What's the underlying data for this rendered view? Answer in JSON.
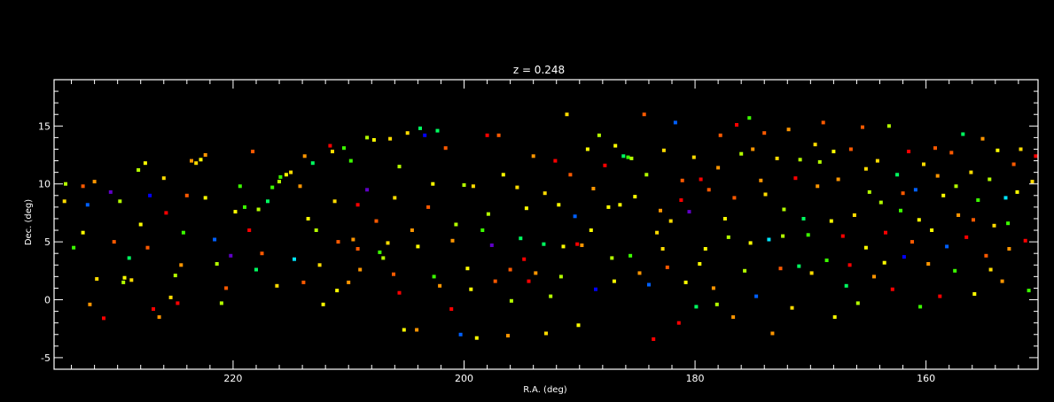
{
  "chart_data": {
    "type": "scatter",
    "title": "z = 0.248",
    "xlabel": "R.A. (deg)",
    "ylabel": "Dec. (deg)",
    "xlim": [
      235.5,
      150.3
    ],
    "ylim": [
      -6,
      19
    ],
    "x_major_ticks": [
      220,
      200,
      180,
      160
    ],
    "y_major_ticks": [
      -5,
      0,
      5,
      10,
      15
    ],
    "x_minor_step": 2,
    "y_minor_step": 1,
    "x_tick_labels": [
      "220",
      "200",
      "180",
      "160"
    ],
    "y_tick_labels": [
      "-5",
      "0",
      "5",
      "10",
      "15"
    ],
    "background": "#000000",
    "axis_color": "#ffffff",
    "grid": false,
    "legend": "none",
    "palette": [
      "#ff0000",
      "#ff5a00",
      "#ff9600",
      "#ffdc00",
      "#ffff00",
      "#b4ff00",
      "#3cff00",
      "#00ff60",
      "#00e6ff",
      "#0060ff",
      "#0000ff",
      "#6000c8"
    ],
    "points": [
      [
        234.5,
        10.0,
        5
      ],
      [
        234.6,
        8.5,
        3
      ],
      [
        233.8,
        4.5,
        6
      ],
      [
        233.0,
        9.8,
        1
      ],
      [
        233.0,
        5.8,
        4
      ],
      [
        232.6,
        8.2,
        9
      ],
      [
        232.4,
        -0.4,
        2
      ],
      [
        231.8,
        1.8,
        3
      ],
      [
        231.2,
        -1.6,
        0
      ],
      [
        230.6,
        9.3,
        11
      ],
      [
        229.8,
        8.5,
        5
      ],
      [
        229.5,
        1.5,
        5
      ],
      [
        229.4,
        1.9,
        4
      ],
      [
        228.8,
        1.7,
        3
      ],
      [
        229.0,
        3.6,
        7
      ],
      [
        228.2,
        11.2,
        5
      ],
      [
        227.6,
        11.8,
        4
      ],
      [
        227.4,
        4.5,
        1
      ],
      [
        227.2,
        9.0,
        10
      ],
      [
        226.9,
        -0.8,
        0
      ],
      [
        226.4,
        -1.5,
        2
      ],
      [
        225.8,
        7.5,
        0
      ],
      [
        225.4,
        0.2,
        3
      ],
      [
        225.0,
        2.1,
        5
      ],
      [
        224.8,
        -0.3,
        0
      ],
      [
        224.5,
        3.0,
        2
      ],
      [
        224.0,
        9.0,
        1
      ],
      [
        223.6,
        12.0,
        2
      ],
      [
        223.2,
        11.8,
        3
      ],
      [
        222.8,
        12.1,
        4
      ],
      [
        222.4,
        12.5,
        2
      ],
      [
        222.4,
        8.8,
        4
      ],
      [
        221.6,
        5.2,
        9
      ],
      [
        221.0,
        -0.3,
        5
      ],
      [
        220.6,
        1.0,
        1
      ],
      [
        220.2,
        3.8,
        11
      ],
      [
        219.4,
        9.8,
        6
      ],
      [
        219.0,
        8.0,
        6
      ],
      [
        218.6,
        6.0,
        0
      ],
      [
        218.3,
        12.8,
        1
      ],
      [
        217.8,
        7.8,
        5
      ],
      [
        217.5,
        4.0,
        1
      ],
      [
        217.0,
        8.5,
        7
      ],
      [
        216.6,
        9.7,
        6
      ],
      [
        216.0,
        10.2,
        5
      ],
      [
        215.9,
        10.6,
        6
      ],
      [
        215.4,
        10.8,
        4
      ],
      [
        215.0,
        11.0,
        3
      ],
      [
        214.7,
        3.5,
        8
      ],
      [
        213.9,
        1.5,
        1
      ],
      [
        213.8,
        12.4,
        2
      ],
      [
        213.5,
        7.0,
        4
      ],
      [
        213.1,
        11.8,
        7
      ],
      [
        212.5,
        3.0,
        3
      ],
      [
        212.2,
        -0.4,
        4
      ],
      [
        211.6,
        13.3,
        0
      ],
      [
        211.4,
        12.8,
        3
      ],
      [
        211.2,
        8.5,
        3
      ],
      [
        210.9,
        5.0,
        1
      ],
      [
        210.4,
        13.1,
        6
      ],
      [
        210.0,
        1.5,
        2
      ],
      [
        209.8,
        12.0,
        6
      ],
      [
        209.6,
        5.2,
        2
      ],
      [
        209.2,
        4.4,
        1
      ],
      [
        209.0,
        2.6,
        2
      ],
      [
        208.4,
        9.5,
        11
      ],
      [
        208.4,
        14.0,
        5
      ],
      [
        207.8,
        13.8,
        4
      ],
      [
        207.3,
        4.1,
        6
      ],
      [
        207.0,
        3.6,
        5
      ],
      [
        206.6,
        4.9,
        3
      ],
      [
        206.4,
        13.9,
        3
      ],
      [
        206.1,
        2.2,
        1
      ],
      [
        205.6,
        0.6,
        0
      ],
      [
        205.6,
        11.5,
        5
      ],
      [
        205.2,
        -2.6,
        4
      ],
      [
        204.9,
        14.4,
        3
      ],
      [
        204.5,
        6.0,
        2
      ],
      [
        204.1,
        -2.6,
        2
      ],
      [
        203.8,
        14.8,
        7
      ],
      [
        203.4,
        14.2,
        10
      ],
      [
        203.1,
        8.0,
        1
      ],
      [
        202.7,
        10.0,
        4
      ],
      [
        202.3,
        14.6,
        7
      ],
      [
        202.1,
        1.2,
        2
      ],
      [
        201.6,
        13.1,
        1
      ],
      [
        201.1,
        -0.8,
        0
      ],
      [
        200.7,
        6.5,
        5
      ],
      [
        200.3,
        -3.0,
        9
      ],
      [
        200.0,
        9.9,
        5
      ],
      [
        199.7,
        2.7,
        4
      ],
      [
        199.2,
        9.8,
        3
      ],
      [
        198.9,
        -3.3,
        4
      ],
      [
        198.4,
        6.0,
        6
      ],
      [
        198.0,
        14.2,
        0
      ],
      [
        197.6,
        4.7,
        11
      ],
      [
        197.3,
        1.6,
        1
      ],
      [
        197.0,
        14.2,
        1
      ],
      [
        196.6,
        10.8,
        4
      ],
      [
        196.2,
        -3.1,
        2
      ],
      [
        195.9,
        -0.1,
        5
      ],
      [
        195.4,
        9.7,
        3
      ],
      [
        195.1,
        5.3,
        7
      ],
      [
        194.8,
        3.5,
        0
      ],
      [
        194.4,
        1.6,
        0
      ],
      [
        194.0,
        12.4,
        2
      ],
      [
        193.8,
        2.3,
        2
      ],
      [
        193.1,
        4.8,
        7
      ],
      [
        192.9,
        -2.9,
        3
      ],
      [
        192.5,
        0.3,
        5
      ],
      [
        192.1,
        12.0,
        0
      ],
      [
        191.8,
        8.2,
        4
      ],
      [
        191.4,
        4.6,
        4
      ],
      [
        191.1,
        16.0,
        3
      ],
      [
        190.8,
        10.8,
        1
      ],
      [
        190.4,
        7.2,
        9
      ],
      [
        190.1,
        -2.2,
        4
      ],
      [
        189.8,
        4.7,
        2
      ],
      [
        189.3,
        13.0,
        4
      ],
      [
        189.0,
        6.0,
        4
      ],
      [
        188.6,
        0.9,
        10
      ],
      [
        188.3,
        14.2,
        5
      ],
      [
        187.8,
        11.6,
        0
      ],
      [
        187.5,
        8.0,
        4
      ],
      [
        187.2,
        3.6,
        5
      ],
      [
        186.9,
        13.3,
        4
      ],
      [
        186.5,
        8.2,
        4
      ],
      [
        186.2,
        12.4,
        7
      ],
      [
        185.8,
        12.3,
        6
      ],
      [
        185.5,
        12.2,
        5
      ],
      [
        185.2,
        8.9,
        4
      ],
      [
        184.8,
        2.3,
        2
      ],
      [
        184.4,
        16.0,
        1
      ],
      [
        184.0,
        1.3,
        9
      ],
      [
        183.6,
        -3.4,
        0
      ],
      [
        183.3,
        5.8,
        3
      ],
      [
        183.0,
        7.7,
        2
      ],
      [
        182.7,
        12.9,
        3
      ],
      [
        182.4,
        2.8,
        1
      ],
      [
        182.1,
        6.8,
        3
      ],
      [
        181.7,
        15.3,
        9
      ],
      [
        181.4,
        -2.0,
        0
      ],
      [
        181.1,
        10.3,
        1
      ],
      [
        180.8,
        1.5,
        4
      ],
      [
        180.5,
        7.6,
        11
      ],
      [
        180.1,
        12.3,
        3
      ],
      [
        179.9,
        -0.6,
        7
      ],
      [
        179.5,
        10.4,
        0
      ],
      [
        179.1,
        4.4,
        4
      ],
      [
        178.8,
        9.5,
        1
      ],
      [
        178.4,
        1.0,
        2
      ],
      [
        178.1,
        -0.4,
        5
      ],
      [
        177.8,
        14.2,
        1
      ],
      [
        177.4,
        7.0,
        4
      ],
      [
        177.1,
        5.4,
        5
      ],
      [
        176.7,
        -1.5,
        2
      ],
      [
        176.4,
        15.1,
        0
      ],
      [
        176.0,
        12.6,
        5
      ],
      [
        175.7,
        2.5,
        5
      ],
      [
        175.3,
        15.7,
        6
      ],
      [
        175.0,
        13.0,
        2
      ],
      [
        174.7,
        0.3,
        9
      ],
      [
        174.3,
        10.3,
        2
      ],
      [
        174.0,
        14.4,
        1
      ],
      [
        173.6,
        5.2,
        8
      ],
      [
        173.3,
        -2.9,
        2
      ],
      [
        172.9,
        12.2,
        3
      ],
      [
        172.6,
        2.7,
        1
      ],
      [
        172.3,
        7.8,
        5
      ],
      [
        171.9,
        14.7,
        2
      ],
      [
        171.6,
        -0.7,
        3
      ],
      [
        171.3,
        10.5,
        0
      ],
      [
        170.9,
        12.1,
        5
      ],
      [
        170.6,
        7.0,
        7
      ],
      [
        170.2,
        5.6,
        6
      ],
      [
        169.9,
        2.3,
        3
      ],
      [
        169.6,
        13.4,
        3
      ],
      [
        169.2,
        11.9,
        5
      ],
      [
        168.9,
        15.3,
        1
      ],
      [
        168.6,
        3.4,
        6
      ],
      [
        168.2,
        6.8,
        4
      ],
      [
        167.9,
        -1.5,
        4
      ],
      [
        167.6,
        10.4,
        2
      ],
      [
        167.2,
        5.5,
        0
      ],
      [
        166.9,
        1.2,
        7
      ],
      [
        166.5,
        13.0,
        1
      ],
      [
        166.2,
        7.3,
        3
      ],
      [
        165.9,
        -0.3,
        5
      ],
      [
        165.5,
        14.9,
        1
      ],
      [
        165.2,
        4.5,
        4
      ],
      [
        164.9,
        9.3,
        5
      ],
      [
        164.5,
        2.0,
        2
      ],
      [
        164.2,
        12.0,
        3
      ],
      [
        163.9,
        8.4,
        5
      ],
      [
        163.5,
        5.8,
        0
      ],
      [
        163.2,
        15.0,
        5
      ],
      [
        162.9,
        0.9,
        0
      ],
      [
        162.5,
        10.8,
        7
      ],
      [
        162.2,
        7.7,
        6
      ],
      [
        161.9,
        3.7,
        10
      ],
      [
        161.5,
        12.8,
        0
      ],
      [
        161.2,
        5.0,
        1
      ],
      [
        160.9,
        9.5,
        9
      ],
      [
        160.5,
        -0.6,
        6
      ],
      [
        160.2,
        11.7,
        3
      ],
      [
        159.8,
        3.1,
        2
      ],
      [
        159.5,
        6.0,
        4
      ],
      [
        159.2,
        13.1,
        1
      ],
      [
        158.8,
        0.3,
        0
      ],
      [
        158.5,
        9.0,
        4
      ],
      [
        158.2,
        4.6,
        9
      ],
      [
        157.8,
        12.7,
        1
      ],
      [
        157.5,
        2.5,
        6
      ],
      [
        157.2,
        7.3,
        2
      ],
      [
        156.8,
        14.3,
        7
      ],
      [
        156.5,
        5.4,
        0
      ],
      [
        156.1,
        11.0,
        3
      ],
      [
        155.8,
        0.5,
        4
      ],
      [
        155.5,
        8.6,
        6
      ],
      [
        155.1,
        13.9,
        2
      ],
      [
        154.8,
        3.8,
        1
      ],
      [
        154.5,
        10.4,
        5
      ],
      [
        154.1,
        6.4,
        3
      ],
      [
        153.8,
        12.9,
        4
      ],
      [
        153.4,
        1.6,
        2
      ],
      [
        153.1,
        8.8,
        8
      ],
      [
        152.8,
        4.4,
        2
      ],
      [
        152.4,
        11.7,
        1
      ],
      [
        152.1,
        9.3,
        4
      ],
      [
        151.8,
        13.0,
        3
      ],
      [
        151.4,
        5.1,
        0
      ],
      [
        151.1,
        0.8,
        6
      ],
      [
        150.8,
        10.2,
        3
      ],
      [
        150.5,
        12.4,
        0
      ],
      [
        232.0,
        10.2,
        2
      ],
      [
        230.3,
        5.0,
        1
      ],
      [
        228.0,
        6.5,
        4
      ],
      [
        226.0,
        10.5,
        3
      ],
      [
        224.3,
        5.8,
        6
      ],
      [
        221.4,
        3.1,
        5
      ],
      [
        219.8,
        7.6,
        4
      ],
      [
        218.0,
        2.6,
        7
      ],
      [
        216.2,
        1.2,
        3
      ],
      [
        214.2,
        9.8,
        2
      ],
      [
        212.8,
        6.0,
        5
      ],
      [
        211.0,
        0.8,
        4
      ],
      [
        209.2,
        8.2,
        0
      ],
      [
        207.6,
        6.8,
        1
      ],
      [
        206.0,
        8.8,
        3
      ],
      [
        204.0,
        4.6,
        4
      ],
      [
        202.6,
        2.0,
        6
      ],
      [
        201.0,
        5.1,
        2
      ],
      [
        199.4,
        0.9,
        4
      ],
      [
        197.9,
        7.4,
        5
      ],
      [
        196.0,
        2.6,
        1
      ],
      [
        194.6,
        7.9,
        4
      ],
      [
        193.0,
        9.2,
        3
      ],
      [
        191.6,
        2.0,
        5
      ],
      [
        190.2,
        4.8,
        0
      ],
      [
        188.8,
        9.6,
        2
      ],
      [
        187.0,
        1.6,
        4
      ],
      [
        185.6,
        3.8,
        6
      ],
      [
        184.2,
        10.8,
        5
      ],
      [
        182.8,
        4.4,
        3
      ],
      [
        181.2,
        8.6,
        0
      ],
      [
        179.6,
        3.1,
        4
      ],
      [
        178.0,
        11.4,
        2
      ],
      [
        176.6,
        8.8,
        1
      ],
      [
        175.2,
        4.9,
        4
      ],
      [
        173.9,
        9.1,
        3
      ],
      [
        172.4,
        5.5,
        5
      ],
      [
        171.0,
        2.9,
        7
      ],
      [
        169.4,
        9.8,
        2
      ],
      [
        168.0,
        12.8,
        4
      ],
      [
        166.6,
        3.0,
        0
      ],
      [
        165.2,
        11.3,
        3
      ],
      [
        163.6,
        3.2,
        4
      ],
      [
        162.0,
        9.2,
        1
      ],
      [
        160.6,
        6.9,
        4
      ],
      [
        159.0,
        10.7,
        2
      ],
      [
        157.4,
        9.8,
        5
      ],
      [
        155.9,
        6.9,
        1
      ],
      [
        154.4,
        2.6,
        3
      ],
      [
        152.9,
        6.6,
        6
      ]
    ]
  }
}
